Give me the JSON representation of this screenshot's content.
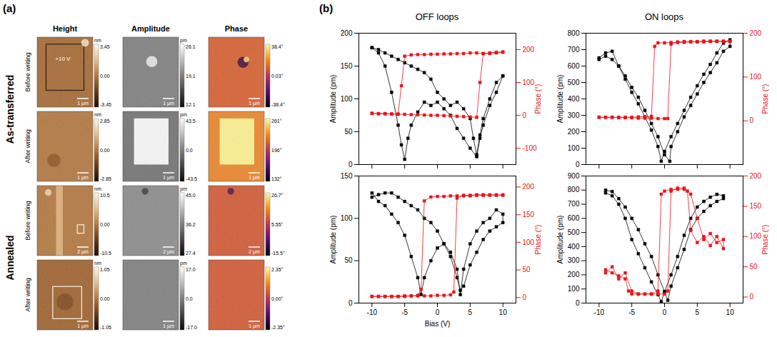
{
  "panel_a": {
    "label": "(a)",
    "columns": [
      "Height",
      "Amplitude",
      "Phase"
    ],
    "groups": [
      {
        "title": "As-transferred",
        "rows": [
          {
            "title": "Before writing",
            "images": [
              {
                "unit": "nm",
                "colorbar": [
                  3.45,
                  {
                    "value": 0,
                    "label": "0.00"
                  },
                  -3.45
                ],
                "scale_bar": "1 µm",
                "annotation": "+10 V"
              },
              {
                "unit": "pm",
                "colorbar": [
                  26.1,
                  19.1,
                  12.1
                ],
                "scale_bar": "1 µm"
              },
              {
                "colorbar": [
                  {
                    "value": 38.4,
                    "label": "38.4°"
                  },
                  {
                    "value": 0.03,
                    "label": "0.03°"
                  },
                  {
                    "value": -38.4,
                    "label": "-38.4°"
                  }
                ],
                "scale_bar": "1 µm"
              }
            ]
          },
          {
            "title": "After writing",
            "images": [
              {
                "unit": "nm",
                "colorbar": [
                  2.85,
                  {
                    "value": 0,
                    "label": "0.00"
                  },
                  -2.85
                ],
                "scale_bar": "1 µm"
              },
              {
                "unit": "pm",
                "colorbar": [
                  43.5,
                  {
                    "value": 0,
                    "label": "0.0"
                  },
                  -43.5
                ],
                "scale_bar": "1 µm"
              },
              {
                "colorbar": [
                  {
                    "value": 261,
                    "label": "261°"
                  },
                  {
                    "value": 196,
                    "label": "196°"
                  },
                  {
                    "value": 132,
                    "label": "132°"
                  }
                ],
                "scale_bar": "1 µm"
              }
            ]
          }
        ]
      },
      {
        "title": "Annealed",
        "rows": [
          {
            "title": "Before writing",
            "images": [
              {
                "unit": "nm",
                "colorbar": [
                  10.5,
                  {
                    "value": 0,
                    "label": "0.00"
                  },
                  -10.5
                ],
                "scale_bar": "2 µm"
              },
              {
                "unit": "pm",
                "colorbar": [
                  {
                    "value": 45,
                    "label": "45.0"
                  },
                  36.2,
                  27.4
                ],
                "scale_bar": "2 µm"
              },
              {
                "colorbar": [
                  {
                    "value": 26.7,
                    "label": "26.7°"
                  },
                  {
                    "value": 5.55,
                    "label": "5.55°"
                  },
                  {
                    "value": -15.5,
                    "label": "-15.5°"
                  }
                ],
                "scale_bar": "2 µm"
              }
            ]
          },
          {
            "title": "After writing",
            "images": [
              {
                "unit": "nm",
                "colorbar": [
                  1.05,
                  {
                    "value": 0,
                    "label": "0.00"
                  },
                  -1.05
                ],
                "scale_bar": "1 µm"
              },
              {
                "unit": "pm",
                "colorbar": [
                  {
                    "value": 17,
                    "label": "17.0"
                  },
                  {
                    "value": 0,
                    "label": "0.0"
                  },
                  {
                    "value": -17,
                    "label": "-17.0"
                  }
                ],
                "scale_bar": "1 µm"
              },
              {
                "colorbar": [
                  {
                    "value": 2.35,
                    "label": "2.35°"
                  },
                  {
                    "value": 0,
                    "label": "0.00°"
                  },
                  {
                    "value": -2.35,
                    "label": "-2.35°"
                  }
                ],
                "scale_bar": "1 µm"
              }
            ]
          }
        ]
      }
    ]
  },
  "panel_b": {
    "label": "(b)"
  },
  "chart_data": [
    {
      "type": "line",
      "title": "OFF loops",
      "y_label": "Amplitude (pm)",
      "y2_label": "Phase (°)",
      "xlim": [
        -12,
        12
      ],
      "xticks": [
        -10,
        -5,
        0,
        5,
        10
      ],
      "ylim": [
        0,
        200
      ],
      "yticks": [
        0,
        50,
        100,
        150,
        200
      ],
      "y2lim": [
        -150,
        250
      ],
      "y2ticks": [
        -100,
        0,
        100,
        200
      ],
      "tick_labels": "y",
      "series": [
        {
          "color": "#000000",
          "marker": "square",
          "x": [
            -10,
            -9,
            -8,
            -7,
            -6,
            -5.5,
            -5,
            -4.5,
            -4,
            -3,
            -2,
            -1,
            0,
            1,
            2,
            3,
            4,
            5,
            6,
            6.5,
            7,
            8,
            9,
            10,
            10,
            9,
            8,
            7,
            6.5,
            6,
            5.5,
            5,
            4,
            3,
            2,
            1,
            0,
            -1,
            -2,
            -3,
            -4,
            -5,
            -6,
            -7,
            -8,
            -9,
            -10
          ],
          "values": [
            178,
            170,
            150,
            110,
            60,
            30,
            8,
            40,
            60,
            80,
            95,
            90,
            95,
            85,
            75,
            55,
            40,
            25,
            12,
            40,
            60,
            90,
            110,
            135,
            135,
            125,
            100,
            70,
            45,
            15,
            40,
            70,
            85,
            95,
            90,
            100,
            110,
            130,
            140,
            145,
            150,
            155,
            160,
            165,
            170,
            175,
            178
          ]
        },
        {
          "color": "#e8141b",
          "marker": "square",
          "axis": "y2",
          "x": [
            -10,
            -9,
            -8,
            -7,
            -6,
            -5,
            -4,
            -3,
            -2,
            -1,
            0,
            1,
            2,
            3,
            4,
            5,
            6,
            6.5,
            7,
            8,
            9,
            10,
            10,
            9,
            8,
            7,
            6,
            5,
            4,
            3,
            2,
            1,
            0,
            -1,
            -2,
            -3,
            -4,
            -5,
            -5.5,
            -6,
            -7,
            -8,
            -9,
            -10
          ],
          "values": [
            6,
            5,
            5,
            4,
            4,
            3,
            2,
            2,
            1,
            0,
            0,
            -1,
            -2,
            -3,
            -4,
            -5,
            -6,
            100,
            188,
            190,
            192,
            193,
            192,
            190,
            188,
            188,
            190,
            190,
            188,
            188,
            187,
            187,
            186,
            186,
            185,
            185,
            184,
            180,
            90,
            3,
            4,
            5,
            5,
            6
          ]
        }
      ]
    },
    {
      "type": "line",
      "title": "ON loops",
      "y_label": "Amplitude (pm)",
      "y2_label": "Phase (°)",
      "xlim": [
        -12,
        12
      ],
      "xticks": [
        -10,
        -5,
        0,
        5,
        10
      ],
      "ylim": [
        0,
        800
      ],
      "yticks": [
        0,
        100,
        200,
        300,
        400,
        500,
        600,
        700,
        800
      ],
      "y2lim": [
        -100,
        200
      ],
      "y2ticks": [
        0,
        100,
        200
      ],
      "tick_labels": "y",
      "series": [
        {
          "color": "#000000",
          "marker": "square",
          "x": [
            -10,
            -9,
            -8,
            -7,
            -6,
            -5,
            -4,
            -3,
            -2,
            -1,
            -0.5,
            0,
            1,
            2,
            3,
            4,
            5,
            6,
            7,
            8,
            9,
            10,
            10,
            9,
            8,
            7,
            6,
            5,
            4,
            3,
            2,
            1,
            0.8,
            0,
            -1,
            -2,
            -3,
            -4,
            -5,
            -6,
            -7,
            -8,
            -9,
            -10
          ],
          "values": [
            650,
            680,
            690,
            600,
            520,
            440,
            370,
            290,
            210,
            110,
            20,
            80,
            170,
            250,
            330,
            410,
            480,
            550,
            610,
            680,
            740,
            760,
            720,
            690,
            620,
            560,
            500,
            430,
            360,
            290,
            200,
            110,
            20,
            60,
            170,
            250,
            330,
            410,
            470,
            540,
            600,
            640,
            660,
            640
          ]
        },
        {
          "color": "#e8141b",
          "marker": "square",
          "axis": "y2",
          "x": [
            -10,
            -9,
            -8,
            -7,
            -6,
            -5,
            -4,
            -3,
            -2,
            -1,
            0,
            0.5,
            1,
            2,
            3,
            4,
            5,
            6,
            7,
            8,
            9,
            10,
            10,
            9,
            8,
            7,
            6,
            5,
            4,
            3,
            2,
            1,
            0,
            -1,
            -1.5,
            -2,
            -3,
            -4,
            -5,
            -6,
            -7,
            -8,
            -9,
            -10
          ],
          "values": [
            8,
            8,
            8,
            7,
            7,
            7,
            6,
            6,
            6,
            5,
            5,
            5,
            175,
            180,
            181,
            181,
            181,
            182,
            182,
            182,
            182,
            182,
            181,
            181,
            181,
            181,
            180,
            180,
            180,
            179,
            179,
            179,
            178,
            178,
            170,
            10,
            9,
            9,
            8,
            8,
            8,
            8,
            8,
            8
          ]
        }
      ]
    },
    {
      "type": "line",
      "x_label": "Bias (V)",
      "y_label": "Amplitude (pm)",
      "y2_label": "Phase (°)",
      "xlim": [
        -12,
        12
      ],
      "xticks": [
        -10,
        -5,
        0,
        5,
        10
      ],
      "ylim": [
        0,
        150
      ],
      "yticks": [
        0,
        50,
        100,
        150
      ],
      "y2lim": [
        -10,
        220
      ],
      "y2ticks": [
        0,
        50,
        100,
        150,
        200
      ],
      "series": [
        {
          "color": "#000000",
          "marker": "square",
          "x": [
            -10,
            -9,
            -8,
            -7,
            -6,
            -5,
            -4,
            -3,
            -2.5,
            -2,
            -1,
            0,
            1,
            2,
            3,
            3.5,
            4,
            5,
            6,
            7,
            8,
            9,
            10,
            10,
            9,
            8,
            7,
            6,
            5,
            4,
            3.5,
            3,
            2,
            1,
            0,
            -1,
            -2,
            -3,
            -4,
            -5,
            -6,
            -7,
            -8,
            -9,
            -10
          ],
          "values": [
            130,
            120,
            115,
            105,
            95,
            80,
            55,
            30,
            10,
            30,
            50,
            65,
            70,
            60,
            40,
            10,
            40,
            70,
            85,
            95,
            100,
            110,
            105,
            95,
            90,
            85,
            75,
            60,
            45,
            20,
            15,
            30,
            55,
            70,
            85,
            95,
            100,
            110,
            115,
            120,
            125,
            130,
            130,
            128,
            125
          ]
        },
        {
          "color": "#e8141b",
          "marker": "square",
          "axis": "y2",
          "x": [
            -10,
            -9,
            -8,
            -7,
            -6,
            -5,
            -4,
            -3,
            -2,
            -1,
            0,
            1,
            2,
            2.5,
            3,
            4,
            5,
            6,
            7,
            8,
            9,
            10,
            10,
            9,
            8,
            7,
            6,
            5,
            4,
            3,
            2,
            1,
            0,
            -1,
            -2,
            -2.5,
            -3,
            -4,
            -5,
            -6,
            -7,
            -8,
            -9,
            -10
          ],
          "values": [
            2,
            2,
            2,
            2,
            2,
            2,
            3,
            3,
            3,
            3,
            4,
            4,
            5,
            10,
            180,
            185,
            185,
            186,
            186,
            186,
            186,
            186,
            185,
            185,
            185,
            185,
            185,
            184,
            184,
            184,
            184,
            183,
            183,
            182,
            175,
            15,
            4,
            3,
            3,
            2,
            2,
            2,
            2,
            2
          ]
        }
      ]
    },
    {
      "type": "line",
      "y_label": "Amplitude (pm)",
      "y2_label": "Phase (°)",
      "xlim": [
        -12,
        12
      ],
      "xticks": [
        -10,
        -5,
        0,
        5,
        10
      ],
      "ylim": [
        0,
        900
      ],
      "yticks": [
        0,
        100,
        200,
        300,
        400,
        500,
        600,
        700,
        800,
        900
      ],
      "y2lim": [
        -10,
        200
      ],
      "y2ticks": [
        0,
        50,
        100,
        150,
        200
      ],
      "series": [
        {
          "color": "#000000",
          "marker": "square",
          "x": [
            -9,
            -8,
            -7,
            -6,
            -5,
            -4,
            -3,
            -2,
            -1,
            -0.5,
            0,
            1,
            2,
            3,
            4,
            5,
            6,
            7,
            8,
            9,
            9,
            8,
            7,
            6,
            5,
            4,
            3,
            2,
            1,
            0.5,
            0,
            -1,
            -2,
            -3,
            -4,
            -5,
            -6,
            -7,
            -8,
            -9
          ],
          "values": [
            780,
            760,
            700,
            600,
            450,
            350,
            250,
            150,
            60,
            10,
            80,
            200,
            330,
            480,
            600,
            680,
            720,
            750,
            770,
            760,
            740,
            720,
            690,
            650,
            600,
            520,
            380,
            250,
            120,
            20,
            80,
            200,
            330,
            420,
            520,
            600,
            680,
            740,
            790,
            800
          ]
        },
        {
          "color": "#e8141b",
          "marker": "square",
          "axis": "y2",
          "x": [
            -9,
            -8,
            -7,
            -6,
            -5.5,
            -5,
            -4,
            -3,
            -2,
            -1,
            0,
            0.5,
            1,
            2,
            3,
            3.5,
            4,
            5,
            6,
            7,
            8,
            9,
            9,
            8,
            7,
            6,
            5,
            4,
            3,
            2,
            1,
            0,
            -0.5,
            -1,
            -2,
            -3,
            -4,
            -5,
            -6,
            -7,
            -8,
            -9
          ],
          "values": [
            45,
            40,
            35,
            30,
            10,
            5,
            5,
            5,
            5,
            5,
            5,
            10,
            175,
            180,
            180,
            175,
            110,
            90,
            100,
            85,
            100,
            80,
            95,
            90,
            105,
            95,
            130,
            170,
            178,
            178,
            178,
            175,
            170,
            10,
            5,
            5,
            5,
            10,
            40,
            30,
            50,
            40
          ]
        }
      ]
    }
  ]
}
